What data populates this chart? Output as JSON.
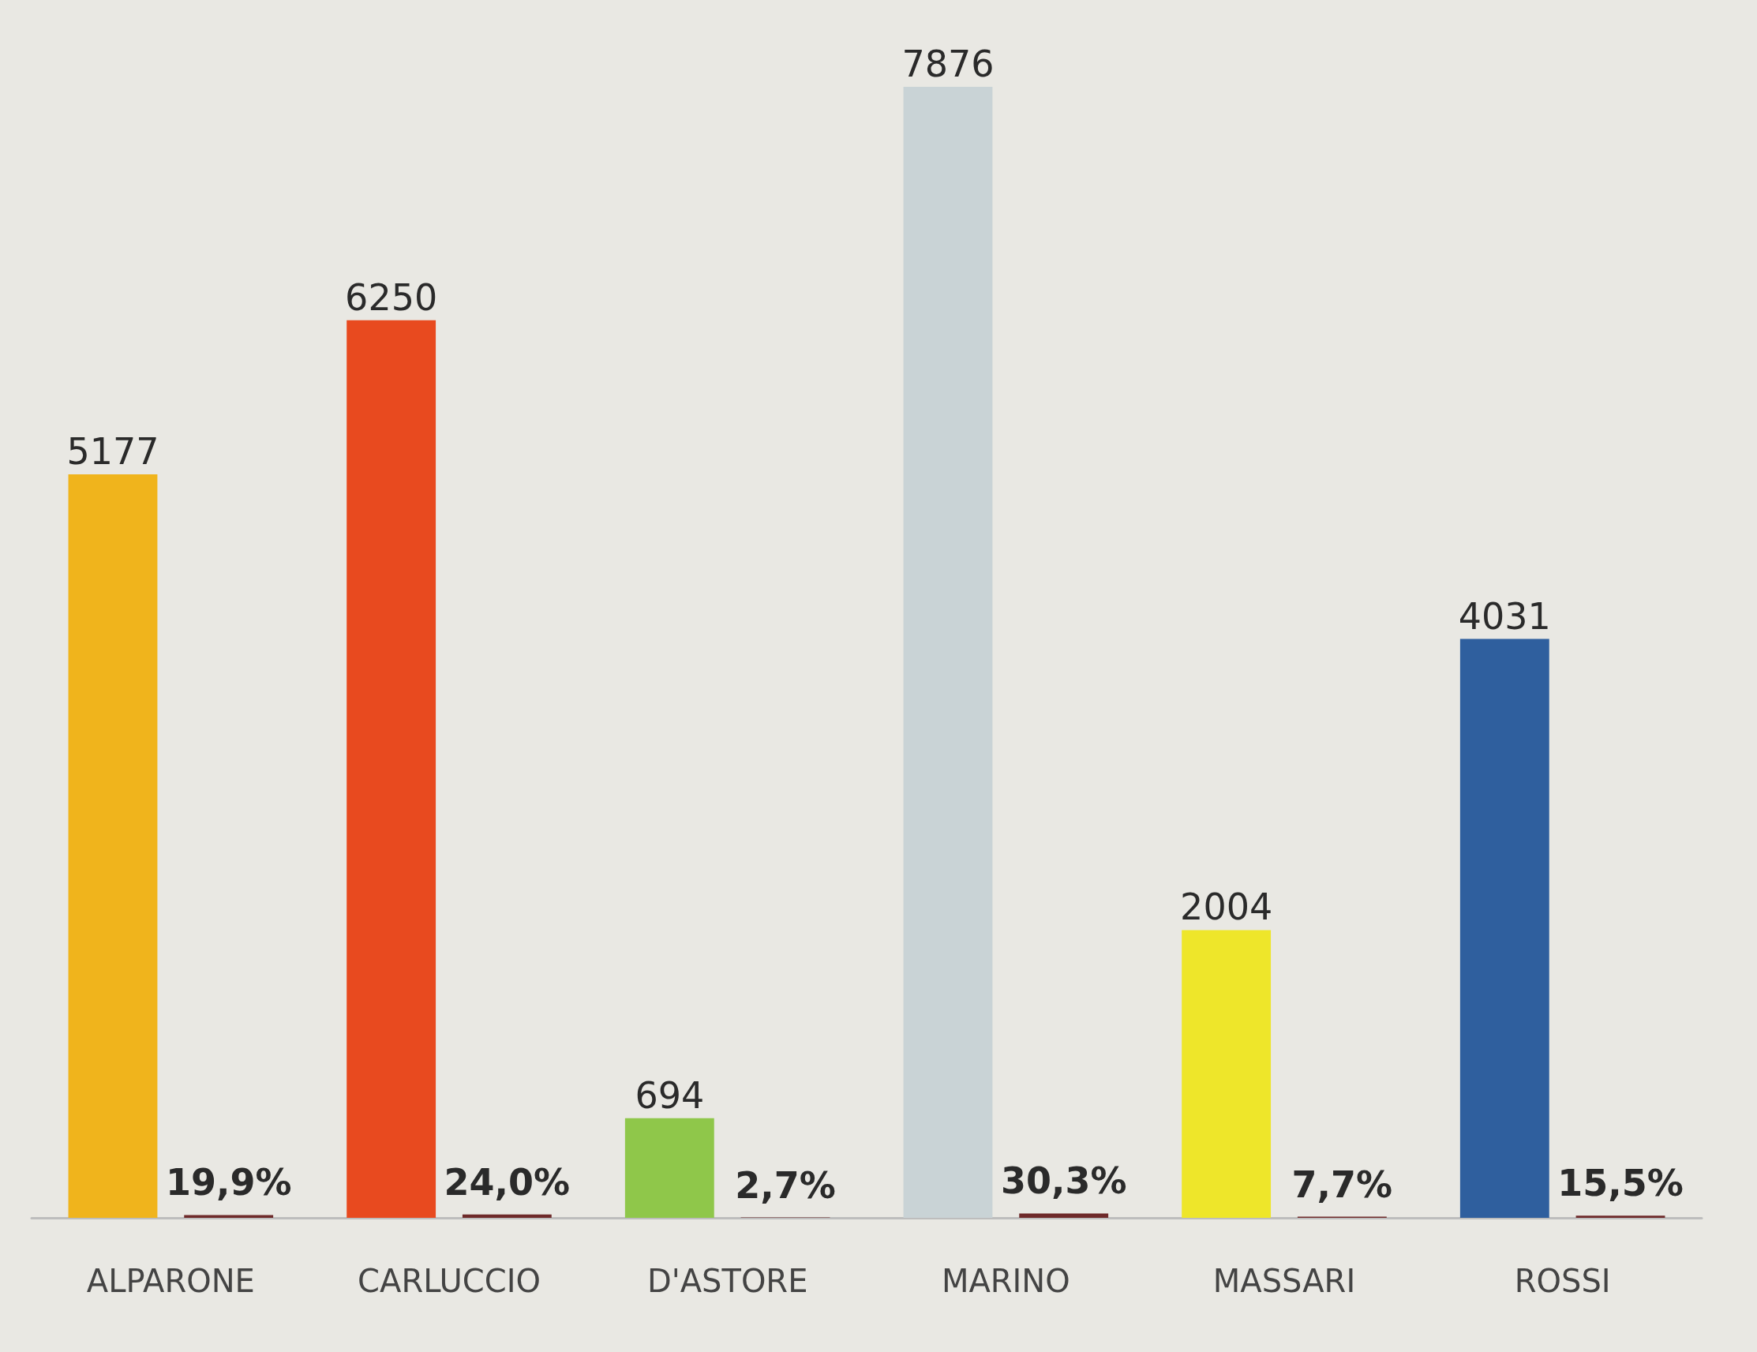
{
  "chart_data": {
    "type": "bar",
    "categories": [
      "ALPARONE",
      "CARLUCCIO",
      "D'ASTORE",
      "MARINO",
      "MASSARI",
      "ROSSI"
    ],
    "series": [
      {
        "values": [
          5177,
          6250,
          694,
          7876,
          2004,
          4031
        ],
        "colors": [
          "#f0b41c",
          "#e84a1f",
          "#8fc74a",
          "#c9d3d6",
          "#eee62a",
          "#2f5f9e"
        ],
        "value_labels": [
          "5177",
          "6250",
          "694",
          "7876",
          "2004",
          "4031"
        ]
      },
      {
        "values": [
          19.9,
          24.0,
          2.7,
          30.3,
          7.7,
          15.5
        ],
        "color": "#6e2a2a",
        "value_labels": [
          "19,9%",
          "24,0%",
          "2,7%",
          "30,3%",
          "7,7%",
          "15,5%"
        ]
      }
    ],
    "tick_labels": "x"
  }
}
